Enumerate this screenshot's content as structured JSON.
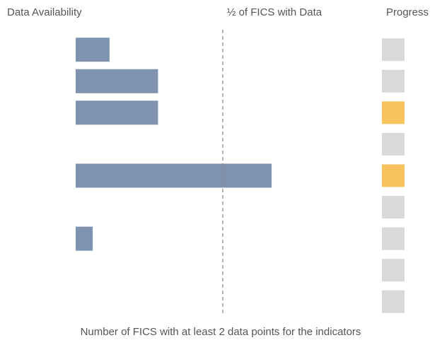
{
  "chart_data": {
    "type": "bar",
    "headers": {
      "left": "Data Availability",
      "reference": "½ of FICS with Data",
      "right": "Progress"
    },
    "x_label": "Number of FICS with at least 2 data points for the indicators",
    "categories": [
      null,
      null,
      null,
      null,
      null,
      null,
      null,
      null,
      null
    ],
    "values": [
      0.115,
      0.28,
      0.28,
      null,
      0.666,
      null,
      0.058,
      null,
      null
    ],
    "color": "#7f93b1",
    "xlim": [
      0,
      1
    ],
    "reference_line": 0.5,
    "progress_colors": [
      "#d9d9d9",
      "#d9d9d9",
      "#f8c25c",
      "#d9d9d9",
      "#f8c25c",
      "#d9d9d9",
      "#d9d9d9",
      "#d9d9d9",
      "#d9d9d9"
    ]
  }
}
